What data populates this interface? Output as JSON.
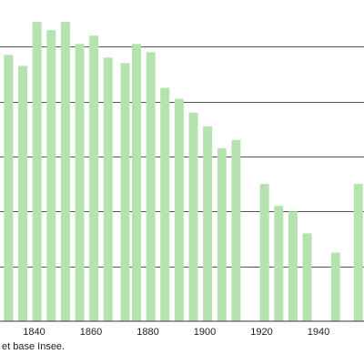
{
  "chart_data": {
    "type": "bar",
    "x": [
      1831,
      1836,
      1841,
      1846,
      1851,
      1856,
      1861,
      1866,
      1872,
      1876,
      1881,
      1886,
      1891,
      1896,
      1901,
      1906,
      1911,
      1921,
      1926,
      1931,
      1936,
      1946,
      1954
    ],
    "values": [
      97,
      93,
      109,
      106,
      109,
      101,
      104,
      96,
      94,
      101,
      98,
      85,
      81,
      76,
      71,
      63,
      66,
      50,
      42,
      40,
      32,
      25,
      50
    ],
    "xticks": [
      1840,
      1860,
      1880,
      1900,
      1920,
      1940
    ],
    "xlim": [
      1828,
      1956
    ],
    "ylim": [
      0,
      117
    ],
    "gridlines": [
      20,
      40,
      60,
      80,
      100
    ],
    "grid": true,
    "bar_color": "#b4e3b0"
  },
  "source_note": "et base Insee."
}
